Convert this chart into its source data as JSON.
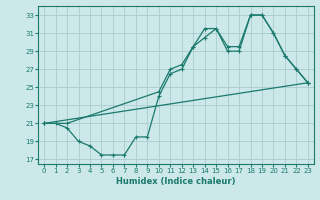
{
  "title": "",
  "xlabel": "Humidex (Indice chaleur)",
  "bg_color": "#cce8e8",
  "grid_color": "#aacccc",
  "line_color": "#1a7a6e",
  "xlim": [
    -0.5,
    23.5
  ],
  "ylim": [
    16.5,
    34.0
  ],
  "xticks": [
    0,
    1,
    2,
    3,
    4,
    5,
    6,
    7,
    8,
    9,
    10,
    11,
    12,
    13,
    14,
    15,
    16,
    17,
    18,
    19,
    20,
    21,
    22,
    23
  ],
  "yticks": [
    17,
    19,
    21,
    23,
    25,
    27,
    29,
    31,
    33
  ],
  "line1_x": [
    0,
    23
  ],
  "line1_y": [
    21,
    25.5
  ],
  "line2_x": [
    0,
    1,
    2,
    3,
    4,
    5,
    6,
    7,
    8,
    9,
    10,
    11,
    12,
    13,
    14,
    15,
    16,
    17,
    18,
    19,
    20,
    21,
    22,
    23
  ],
  "line2_y": [
    21,
    21,
    20.5,
    19,
    18.5,
    17.5,
    17.5,
    17.5,
    19.5,
    19.5,
    24.0,
    26.5,
    27.0,
    29.5,
    31.5,
    31.5,
    29.0,
    29.0,
    33.0,
    33.0,
    31.0,
    28.5,
    27.0,
    25.5
  ],
  "line3_x": [
    0,
    2,
    10,
    11,
    12,
    13,
    14,
    15,
    16,
    17,
    18,
    19,
    20,
    21,
    22,
    23
  ],
  "line3_y": [
    21,
    21,
    24.5,
    27.0,
    27.5,
    29.5,
    30.5,
    31.5,
    29.5,
    29.5,
    33.0,
    33.0,
    31.0,
    28.5,
    27.0,
    25.5
  ]
}
